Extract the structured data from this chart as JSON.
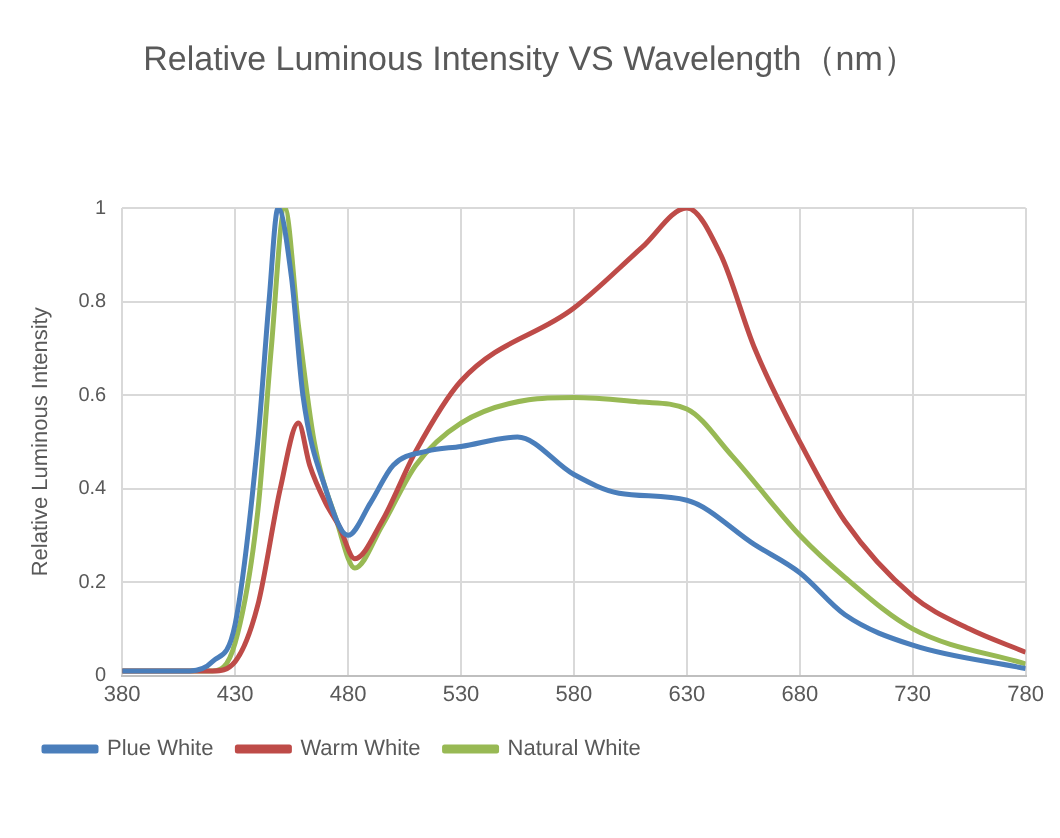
{
  "chart_data": {
    "type": "line",
    "title": "Relative Luminous Intensity VS Wavelength（nm）",
    "ylabel": "Relative Luminous Intensity",
    "xlim": [
      380,
      780
    ],
    "xticks": [
      380,
      430,
      480,
      530,
      580,
      630,
      680,
      730,
      780
    ],
    "ylim": [
      0,
      1
    ],
    "yticks": [
      0,
      0.2,
      0.4,
      0.6,
      0.8,
      1
    ],
    "grid": true,
    "legend": "bottom",
    "marker": "none",
    "line_style": "solid",
    "series": [
      {
        "name": "Plue White",
        "color": "#4a7ebb",
        "x": [
          380,
          410,
          420,
          430,
          440,
          445,
          449,
          455,
          460,
          470,
          480,
          490,
          500,
          515,
          530,
          555,
          580,
          600,
          630,
          660,
          680,
          700,
          730,
          780
        ],
        "values": [
          0.01,
          0.01,
          0.03,
          0.11,
          0.5,
          0.8,
          1.0,
          0.85,
          0.6,
          0.4,
          0.3,
          0.37,
          0.45,
          0.48,
          0.49,
          0.51,
          0.43,
          0.39,
          0.375,
          0.28,
          0.22,
          0.13,
          0.065,
          0.015
        ]
      },
      {
        "name": "Warm White",
        "color": "#be4b48",
        "x": [
          380,
          420,
          430,
          440,
          450,
          458,
          463,
          470,
          476,
          483,
          495,
          510,
          530,
          580,
          610,
          630,
          645,
          660,
          680,
          700,
          730,
          755,
          780
        ],
        "values": [
          0.01,
          0.01,
          0.03,
          0.15,
          0.4,
          0.54,
          0.45,
          0.37,
          0.32,
          0.25,
          0.33,
          0.48,
          0.63,
          0.786,
          0.915,
          1.0,
          0.9,
          0.7,
          0.5,
          0.33,
          0.17,
          0.1,
          0.05
        ]
      },
      {
        "name": "Natural White",
        "color": "#98b954",
        "x": [
          380,
          420,
          430,
          440,
          446,
          452,
          458,
          465,
          475,
          483,
          495,
          510,
          530,
          560,
          580,
          610,
          630,
          650,
          680,
          700,
          730,
          780
        ],
        "values": [
          0.01,
          0.01,
          0.07,
          0.35,
          0.7,
          1.0,
          0.75,
          0.5,
          0.33,
          0.23,
          0.32,
          0.45,
          0.54,
          0.59,
          0.595,
          0.585,
          0.57,
          0.47,
          0.3,
          0.21,
          0.1,
          0.025
        ]
      }
    ]
  }
}
